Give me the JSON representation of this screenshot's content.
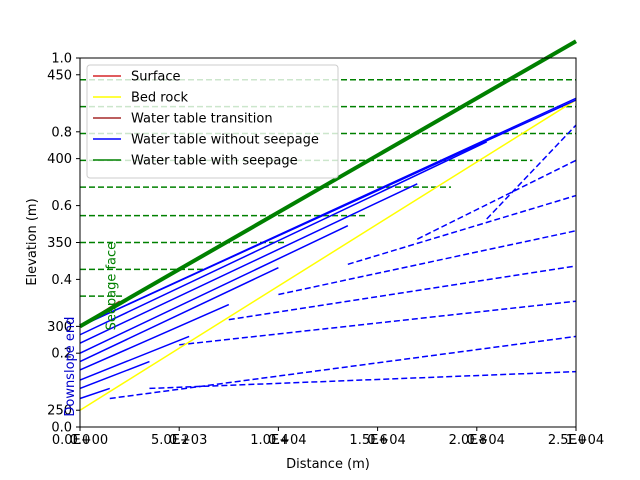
{
  "chart_data": {
    "type": "line",
    "xlabel": "Distance (m)",
    "ylabel": "Elevation (m)",
    "xlim": [
      0,
      25000
    ],
    "ylim": [
      240,
      460
    ],
    "ylim_overlay": [
      0,
      1
    ],
    "grid": false,
    "legend_position": "top-left",
    "x_ticks": [
      0,
      5000,
      10000,
      15000,
      20000,
      25000
    ],
    "x_tick_labels": [
      "0.0E+00",
      "5.0E+03",
      "1.0E+04",
      "1.5E+04",
      "2.0E+04",
      "2.5E+04"
    ],
    "x_overlay_tick_labels": [
      "0.0",
      "0.2",
      "0.4",
      "0.6",
      "0.8",
      "1.0"
    ],
    "y_ticks": [
      250,
      300,
      350,
      400,
      450
    ],
    "y_tick_labels": [
      "250",
      "300",
      "350",
      "400",
      "450"
    ],
    "y_overlay_ticks": [
      0.0,
      0.2,
      0.4,
      0.6,
      0.8,
      1.0
    ],
    "y_overlay_tick_labels": [
      "0.0",
      "0.2",
      "0.4",
      "0.6",
      "0.8",
      "1.0"
    ],
    "series": [
      {
        "name": "Surface",
        "color": "#d62728",
        "style": "solid",
        "x": [
          0,
          2000
        ],
        "y": [
          300,
          315
        ]
      },
      {
        "name": "Bed rock",
        "color": "#ffff00",
        "style": "solid",
        "x": [
          0,
          25000
        ],
        "y": [
          250,
          435
        ]
      },
      {
        "name": "Water table transition",
        "color": "#a52a2a",
        "style": "solid",
        "x": [
          0,
          2000
        ],
        "y": [
          300,
          315
        ]
      },
      {
        "name": "Water table without seepage",
        "color": "#0000ff",
        "style": "solid",
        "x": [
          0,
          25000
        ],
        "y": [
          300,
          435
        ]
      },
      {
        "name": "Water table with seepage",
        "color": "#008000",
        "style": "solid",
        "x": [
          0,
          25000
        ],
        "y": [
          300,
          470
        ]
      }
    ],
    "blue_solid_lines": [
      {
        "x": [
          0,
          25000
        ],
        "y": [
          300,
          436
        ]
      },
      {
        "x": [
          0,
          20500
        ],
        "y": [
          295,
          410
        ]
      },
      {
        "x": [
          0,
          17000
        ],
        "y": [
          290,
          385
        ]
      },
      {
        "x": [
          0,
          13500
        ],
        "y": [
          284,
          360
        ]
      },
      {
        "x": [
          0,
          10000
        ],
        "y": [
          279,
          335
        ]
      },
      {
        "x": [
          0,
          7500
        ],
        "y": [
          274,
          313
        ]
      },
      {
        "x": [
          0,
          5500
        ],
        "y": [
          268,
          294
        ]
      },
      {
        "x": [
          0,
          3500
        ],
        "y": [
          263,
          279
        ]
      },
      {
        "x": [
          0,
          1500
        ],
        "y": [
          257,
          263
        ]
      }
    ],
    "blue_dashed_lines": [
      {
        "x": [
          5000,
          25000
        ],
        "y": [
          289,
          315
        ]
      },
      {
        "x": [
          7500,
          25000
        ],
        "y": [
          304,
          336
        ]
      },
      {
        "x": [
          10000,
          25000
        ],
        "y": [
          319,
          357
        ]
      },
      {
        "x": [
          13500,
          25000
        ],
        "y": [
          337,
          378
        ]
      },
      {
        "x": [
          17000,
          25000
        ],
        "y": [
          352,
          399
        ]
      },
      {
        "x": [
          20500,
          25000
        ],
        "y": [
          364,
          420
        ]
      },
      {
        "x": [
          1500,
          25000
        ],
        "y": [
          257,
          294
        ]
      },
      {
        "x": [
          3500,
          25000
        ],
        "y": [
          263,
          273
        ]
      }
    ],
    "green_dashed_levels": [
      318,
      334,
      350,
      366,
      383,
      399,
      415,
      431,
      447
    ],
    "green_dashed_x_end": [
      2200,
      6300,
      10400,
      14500,
      18700,
      22800,
      25000,
      25000,
      25000
    ],
    "annotations": [
      {
        "text": "Seepage face",
        "color": "#008000",
        "x": 1800,
        "y": 324
      },
      {
        "text": "Downslope end",
        "color": "#0000cc",
        "x": 0,
        "y": 276
      }
    ]
  }
}
